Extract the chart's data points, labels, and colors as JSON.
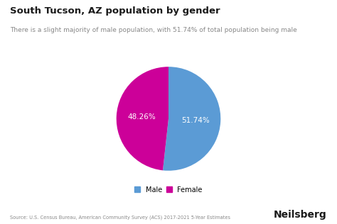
{
  "title": "South Tucson, AZ population by gender",
  "subtitle": "There is a slight majority of male population, with 51.74% of total population being male",
  "values": [
    51.74,
    48.26
  ],
  "labels": [
    "Male",
    "Female"
  ],
  "colors": [
    "#5B9BD5",
    "#CC0099"
  ],
  "autopct_labels": [
    "51.74%",
    "48.26%"
  ],
  "legend_labels": [
    "Male",
    "Female"
  ],
  "source_text": "Source: U.S. Census Bureau, American Community Survey (ACS) 2017-2021 5-Year Estimates",
  "brand_text": "Neilsberg",
  "background_color": "#ffffff",
  "label_color": "#ffffff",
  "startangle": 90
}
